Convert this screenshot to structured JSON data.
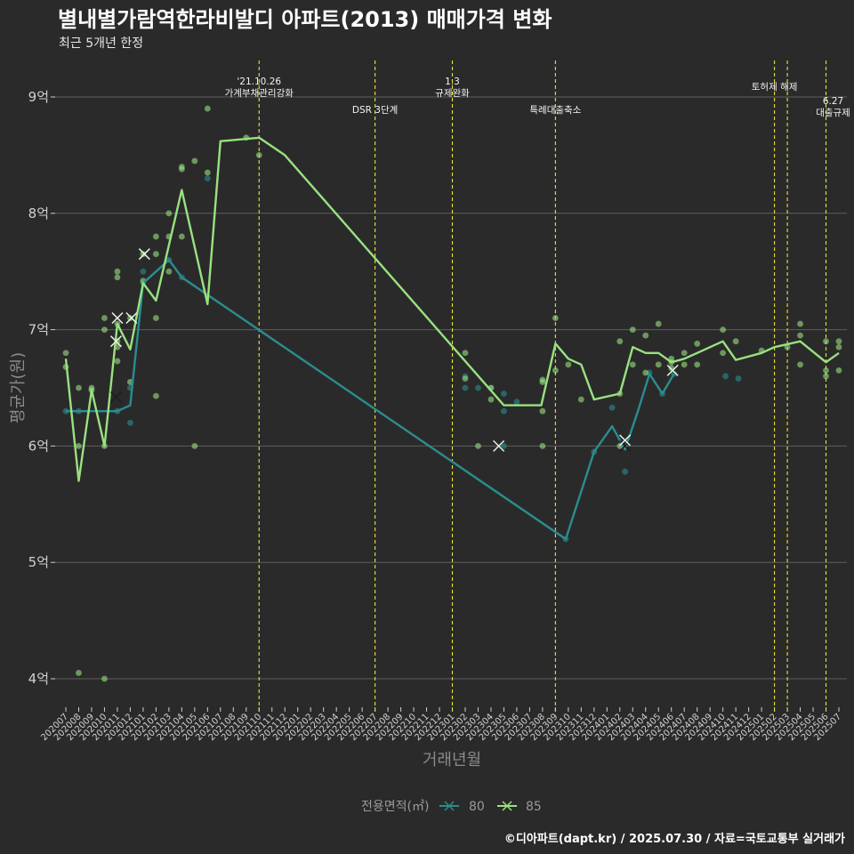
{
  "chart_data": {
    "type": "line",
    "title": "별내별가람역한라비발디 아파트(2013) 매매가격 변화",
    "subtitle": "최근 5개년 한정",
    "xlabel": "거래년월",
    "ylabel": "평균가(원)",
    "ylim": [
      3.7,
      9.3
    ],
    "yticks": [
      4,
      5,
      6,
      7,
      8,
      9
    ],
    "ytick_labels": [
      "4억",
      "5억",
      "6억",
      "7억",
      "8억",
      "9억"
    ],
    "categories": [
      "202007",
      "202008",
      "202009",
      "202010",
      "202011",
      "202012",
      "202101",
      "202102",
      "202103",
      "202104",
      "202105",
      "202106",
      "202107",
      "202108",
      "202109",
      "202110",
      "202111",
      "202112",
      "202201",
      "202202",
      "202203",
      "202204",
      "202205",
      "202206",
      "202207",
      "202208",
      "202209",
      "202210",
      "202211",
      "202212",
      "202301",
      "202302",
      "202303",
      "202304",
      "202305",
      "202306",
      "202307",
      "202308",
      "202309",
      "202310",
      "202311",
      "202312",
      "202401",
      "202402",
      "202403",
      "202404",
      "202405",
      "202406",
      "202407",
      "202408",
      "202409",
      "202410",
      "202411",
      "202412",
      "202501",
      "202502",
      "202503",
      "202504",
      "202505",
      "202506",
      "202507"
    ],
    "vlines": [
      {
        "x": 15,
        "label": "'21.10.26\n가계부채관리강화",
        "row": 0
      },
      {
        "x": 24,
        "label": "DSR 3단계",
        "row": 2
      },
      {
        "x": 30,
        "label": "1.3\n규제완화",
        "row": 0
      },
      {
        "x": 38,
        "label": "특례대출축소",
        "row": 2
      },
      {
        "x": 55,
        "label": "토허제 해제",
        "row": 1
      },
      {
        "x": 56,
        "label": "",
        "row": 1
      },
      {
        "x": 59,
        "label": "6.27\n대출규제",
        "row": 3
      }
    ],
    "series": [
      {
        "name": "80",
        "color": "#2a8d8f",
        "line": [
          [
            0,
            6.3
          ],
          [
            1,
            6.3
          ],
          [
            4,
            6.3
          ],
          [
            5,
            6.35
          ],
          [
            6,
            7.4
          ],
          [
            7,
            7.5
          ],
          [
            8,
            7.6
          ],
          [
            9,
            7.45
          ],
          [
            38.8,
            5.2
          ],
          [
            41,
            5.95
          ],
          [
            42.4,
            6.17
          ],
          [
            43.4,
            5.97
          ],
          [
            44.4,
            6.3
          ],
          [
            45.3,
            6.62
          ],
          [
            46.3,
            6.45
          ],
          [
            47.2,
            6.62
          ]
        ],
        "points": [
          [
            0,
            6.3
          ],
          [
            1,
            6.3
          ],
          [
            4,
            6.3
          ],
          [
            5,
            6.2
          ],
          [
            5,
            6.5
          ],
          [
            6,
            7.5
          ],
          [
            6,
            7.4
          ],
          [
            8,
            7.6
          ],
          [
            9,
            7.45
          ],
          [
            11,
            8.3
          ],
          [
            31,
            6.5
          ],
          [
            31,
            6.6
          ],
          [
            32,
            6.5
          ],
          [
            33,
            6.5
          ],
          [
            34,
            6.45
          ],
          [
            34,
            6.3
          ],
          [
            34,
            6.0
          ],
          [
            35,
            6.38
          ],
          [
            38.8,
            5.2
          ],
          [
            41,
            5.95
          ],
          [
            42.4,
            6.33
          ],
          [
            43.4,
            5.78
          ],
          [
            45.3,
            6.63
          ],
          [
            46.3,
            6.45
          ],
          [
            47.2,
            6.62
          ],
          [
            51.2,
            6.6
          ],
          [
            52.2,
            6.58
          ]
        ],
        "markers": [
          [
            3.9,
            6.42
          ],
          [
            33.6,
            6.0
          ],
          [
            43.4,
            6.0
          ]
        ]
      },
      {
        "name": "85",
        "color": "#98e27f",
        "line": [
          [
            0,
            6.75
          ],
          [
            1,
            5.7
          ],
          [
            2,
            6.48
          ],
          [
            3,
            6.0
          ],
          [
            4,
            7.05
          ],
          [
            5,
            6.83
          ],
          [
            6,
            7.4
          ],
          [
            7,
            7.25
          ],
          [
            9,
            8.2
          ],
          [
            11,
            7.22
          ],
          [
            12,
            8.62
          ],
          [
            15,
            8.65
          ],
          [
            17,
            8.5
          ],
          [
            34,
            6.35
          ],
          [
            36.9,
            6.35
          ],
          [
            38,
            6.88
          ],
          [
            39,
            6.75
          ],
          [
            40,
            6.7
          ],
          [
            41,
            6.4
          ],
          [
            43,
            6.45
          ],
          [
            44,
            6.85
          ],
          [
            45,
            6.8
          ],
          [
            46,
            6.8
          ],
          [
            47,
            6.72
          ],
          [
            48,
            6.75
          ],
          [
            49,
            6.8
          ],
          [
            50,
            6.85
          ],
          [
            51,
            6.9
          ],
          [
            52,
            6.74
          ],
          [
            54,
            6.8
          ],
          [
            55,
            6.85
          ],
          [
            57,
            6.9
          ],
          [
            59,
            6.72
          ],
          [
            60,
            6.8
          ]
        ],
        "points": [
          [
            0,
            6.8
          ],
          [
            0,
            6.68
          ],
          [
            1,
            6.0
          ],
          [
            1,
            6.5
          ],
          [
            1,
            4.05
          ],
          [
            2,
            6.5
          ],
          [
            2,
            6.48
          ],
          [
            3,
            6.0
          ],
          [
            3,
            7.0
          ],
          [
            3,
            7.1
          ],
          [
            3,
            4.0
          ],
          [
            4,
            7.5
          ],
          [
            4,
            7.45
          ],
          [
            4,
            7.05
          ],
          [
            4,
            6.73
          ],
          [
            4,
            6.9
          ],
          [
            4,
            6.85
          ],
          [
            5,
            6.55
          ],
          [
            5,
            7.1
          ],
          [
            6,
            7.65
          ],
          [
            6,
            7.42
          ],
          [
            7,
            7.8
          ],
          [
            7,
            7.65
          ],
          [
            7,
            7.1
          ],
          [
            7,
            6.43
          ],
          [
            8,
            8.0
          ],
          [
            8,
            7.8
          ],
          [
            8,
            7.5
          ],
          [
            9,
            8.4
          ],
          [
            9,
            8.38
          ],
          [
            9,
            7.8
          ],
          [
            10,
            8.45
          ],
          [
            10,
            6.0
          ],
          [
            11,
            8.9
          ],
          [
            11,
            8.35
          ],
          [
            14,
            8.65
          ],
          [
            15,
            8.5
          ],
          [
            31,
            6.8
          ],
          [
            31,
            6.58
          ],
          [
            32,
            6.0
          ],
          [
            33,
            6.4
          ],
          [
            33,
            6.5
          ],
          [
            37,
            6.3
          ],
          [
            37,
            6.57
          ],
          [
            37,
            6.55
          ],
          [
            37,
            6.0
          ],
          [
            38,
            7.1
          ],
          [
            38,
            6.65
          ],
          [
            39,
            6.7
          ],
          [
            40,
            6.4
          ],
          [
            43,
            6.9
          ],
          [
            43,
            6.0
          ],
          [
            43,
            6.45
          ],
          [
            44,
            7.0
          ],
          [
            44,
            6.7
          ],
          [
            45,
            6.95
          ],
          [
            45,
            6.63
          ],
          [
            46,
            7.05
          ],
          [
            46,
            6.7
          ],
          [
            47,
            6.75
          ],
          [
            47,
            6.72
          ],
          [
            47,
            6.67
          ],
          [
            48,
            6.8
          ],
          [
            48,
            6.7
          ],
          [
            49,
            6.88
          ],
          [
            49,
            6.7
          ],
          [
            51,
            7.0
          ],
          [
            51,
            6.8
          ],
          [
            52,
            6.9
          ],
          [
            54,
            6.82
          ],
          [
            56,
            6.85
          ],
          [
            57,
            7.05
          ],
          [
            57,
            6.95
          ],
          [
            57,
            6.7
          ],
          [
            59,
            6.9
          ],
          [
            59,
            6.65
          ],
          [
            59,
            6.6
          ],
          [
            60,
            6.9
          ],
          [
            60,
            6.85
          ],
          [
            60,
            6.65
          ]
        ],
        "markers": [
          [
            4.0,
            7.1
          ],
          [
            5.1,
            7.1
          ],
          [
            6.1,
            7.65
          ],
          [
            3.9,
            6.9
          ],
          [
            33.6,
            6.0
          ],
          [
            43.4,
            6.05
          ],
          [
            47.1,
            6.65
          ]
        ]
      }
    ],
    "legend": {
      "title": "전용면적(㎡)",
      "position": "bottom",
      "labels": [
        "80",
        "85"
      ]
    },
    "caption": "©디아파트(dapt.kr) / 2025.07.30 / 자료=국토교통부 실거래가"
  }
}
